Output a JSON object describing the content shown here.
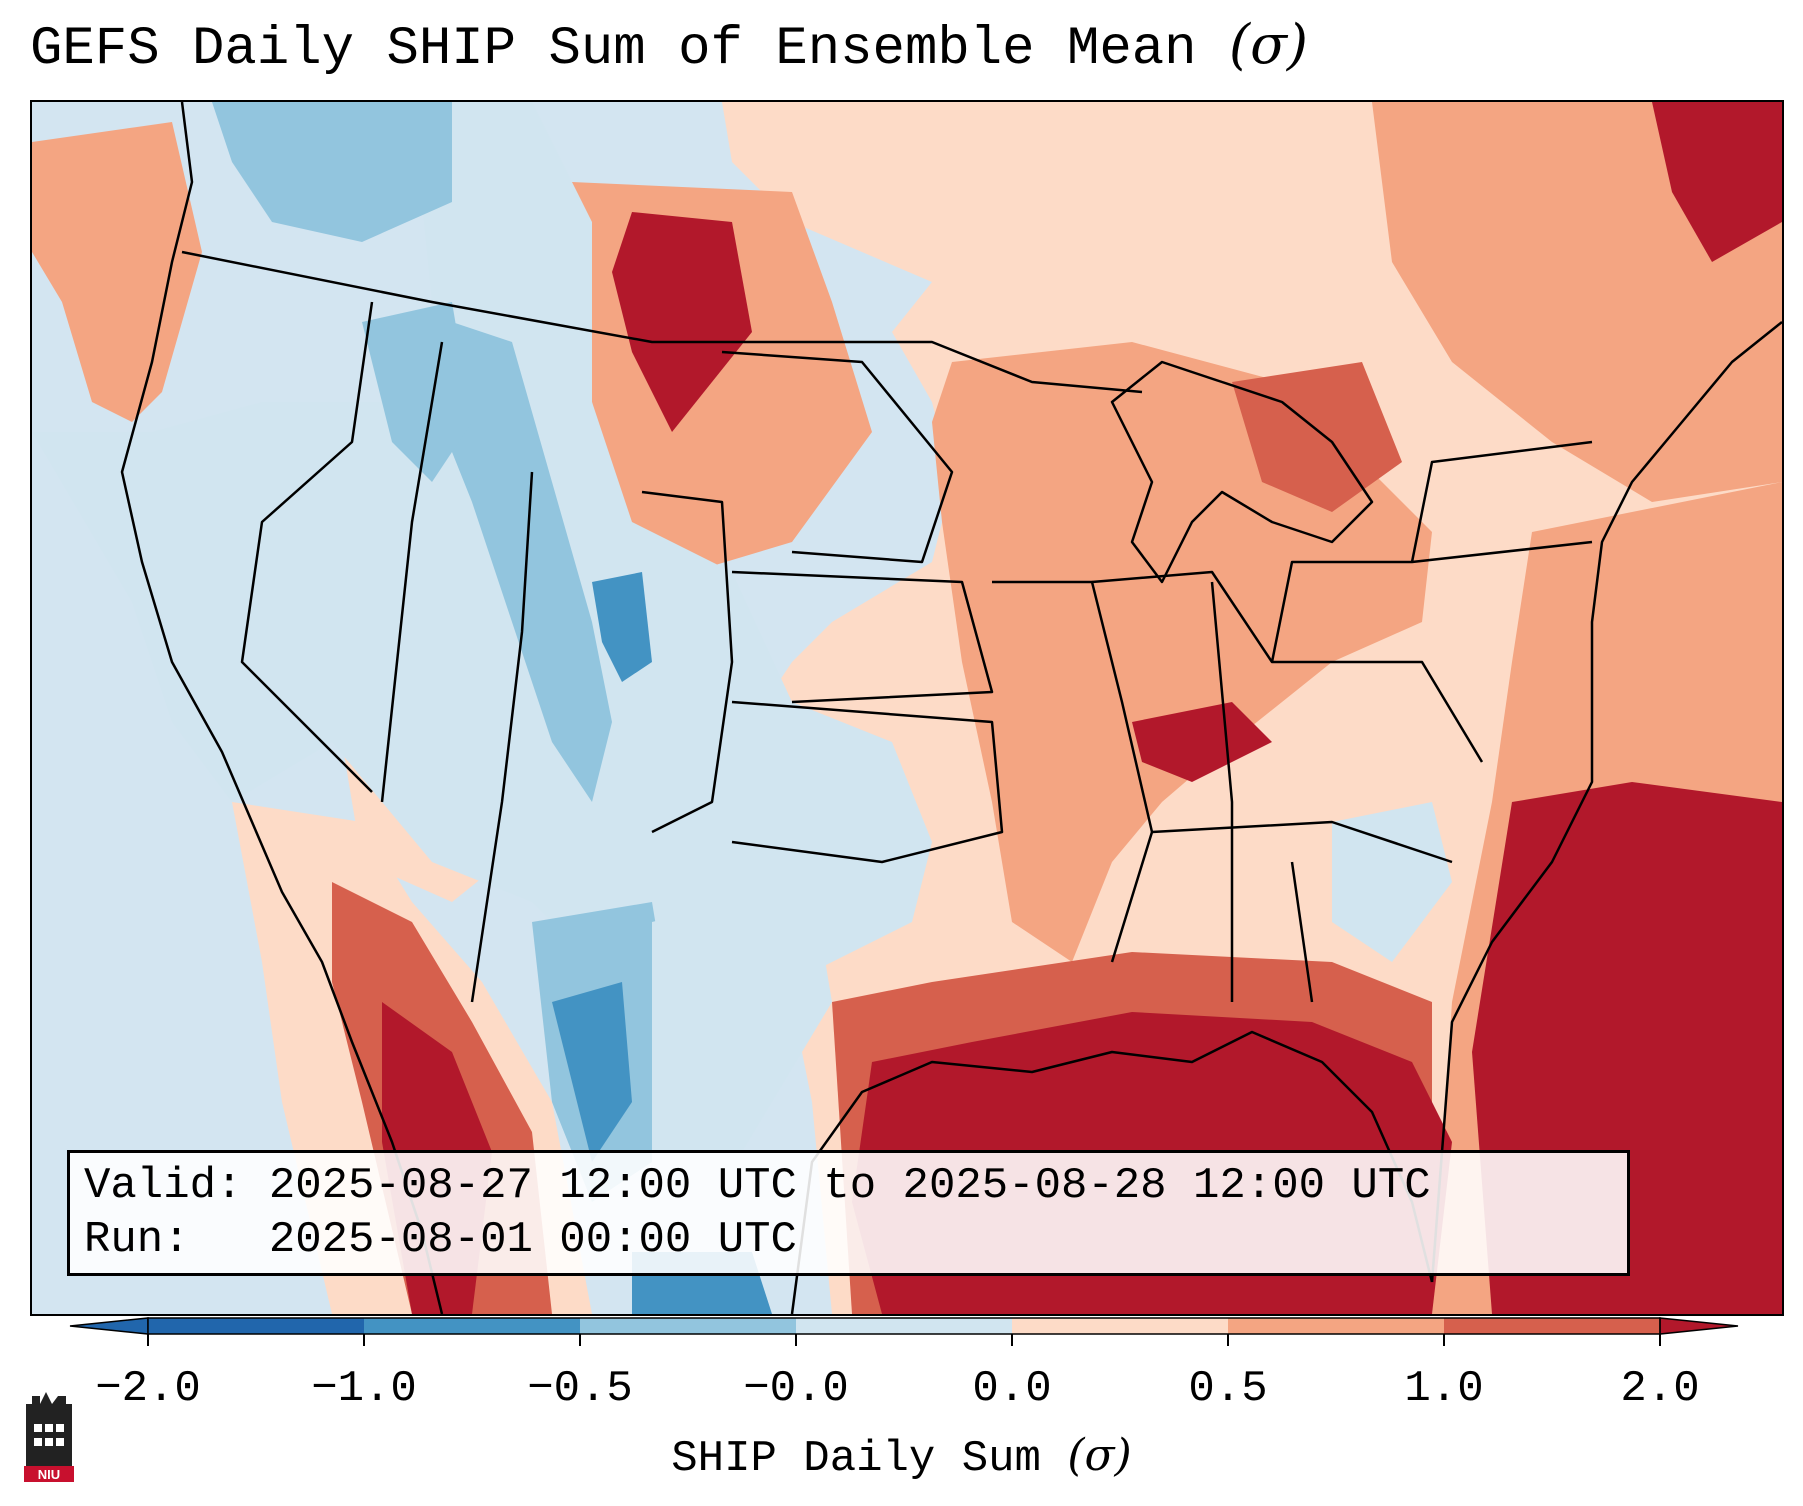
{
  "title": "GEFS Daily SHIP Sum of Ensemble Mean",
  "title_symbol": "(σ)",
  "info_box": {
    "valid_label": "Valid:",
    "valid_value": "2025-08-27 12:00 UTC to 2025-08-28 12:00 UTC",
    "run_label": "Run:",
    "run_value": "2025-08-01 00:00 UTC"
  },
  "colorbar": {
    "label": "SHIP Daily Sum",
    "label_symbol": "(σ)",
    "ticks": [
      "−2.0",
      "−1.0",
      "−0.5",
      "−0.0",
      "0.0",
      "0.5",
      "1.0",
      "2.0"
    ],
    "bin_colors": [
      "#2166ac",
      "#4393c3",
      "#92c5de",
      "#d1e5f0",
      "#fddbc7",
      "#f4a582",
      "#d6604d",
      "#b2182b"
    ]
  },
  "map": {
    "region": "Continental United States",
    "colors": {
      "ocean": "#d3e5f1",
      "border": "#000000"
    }
  },
  "logo": {
    "text": "NIU",
    "color": "#c8102e"
  }
}
